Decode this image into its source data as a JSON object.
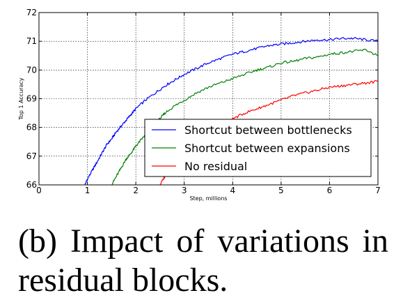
{
  "caption": "(b) Impact of variations in residual blocks.",
  "chart_data": {
    "type": "line",
    "title": "",
    "xlabel": "Step, millions",
    "ylabel": "Top 1 Accuracy",
    "xlim": [
      0,
      7
    ],
    "ylim": [
      66,
      72
    ],
    "x_ticks": [
      0,
      1,
      2,
      3,
      4,
      5,
      6,
      7
    ],
    "y_ticks": [
      66,
      67,
      68,
      69,
      70,
      71,
      72
    ],
    "grid": true,
    "legend_position": "lower-right",
    "series": [
      {
        "name": "Shortcut between bottlenecks",
        "color": "#0000ff",
        "x": [
          0.95,
          1.0,
          1.1,
          1.2,
          1.3,
          1.4,
          1.5,
          1.6,
          1.7,
          1.8,
          1.9,
          2.0,
          2.2,
          2.4,
          2.6,
          2.8,
          3.0,
          3.25,
          3.5,
          3.75,
          4.0,
          4.25,
          4.5,
          4.75,
          5.0,
          5.25,
          5.5,
          5.75,
          6.0,
          6.25,
          6.5,
          6.75,
          7.0
        ],
        "y": [
          66.0,
          66.2,
          66.5,
          66.8,
          67.1,
          67.4,
          67.6,
          67.85,
          68.05,
          68.25,
          68.45,
          68.65,
          68.95,
          69.2,
          69.45,
          69.65,
          69.85,
          70.05,
          70.25,
          70.4,
          70.55,
          70.65,
          70.75,
          70.85,
          70.9,
          70.95,
          71.0,
          71.05,
          71.05,
          71.1,
          71.1,
          71.05,
          71.0
        ]
      },
      {
        "name": "Shortcut between expansions",
        "color": "#008000",
        "x": [
          1.5,
          1.6,
          1.7,
          1.8,
          1.9,
          2.0,
          2.1,
          2.2,
          2.3,
          2.4,
          2.5,
          2.6,
          2.8,
          3.0,
          3.25,
          3.5,
          3.75,
          4.0,
          4.25,
          4.5,
          4.75,
          5.0,
          5.25,
          5.5,
          5.75,
          6.0,
          6.25,
          6.5,
          6.75,
          7.0
        ],
        "y": [
          66.0,
          66.3,
          66.6,
          66.9,
          67.1,
          67.35,
          67.55,
          67.75,
          67.95,
          68.15,
          68.3,
          68.5,
          68.75,
          68.95,
          69.2,
          69.4,
          69.55,
          69.7,
          69.85,
          70.0,
          70.1,
          70.25,
          70.3,
          70.4,
          70.45,
          70.55,
          70.6,
          70.65,
          70.7,
          70.5
        ]
      },
      {
        "name": "No residual",
        "color": "#ff0000",
        "x": [
          2.5,
          2.6,
          2.75,
          2.9,
          3.0,
          3.2,
          3.4,
          3.6,
          3.8,
          4.0,
          4.25,
          4.5,
          4.75,
          5.0,
          5.25,
          5.5,
          5.75,
          6.0,
          6.25,
          6.5,
          6.75,
          7.0
        ],
        "y": [
          66.0,
          66.3,
          66.6,
          66.9,
          67.15,
          67.45,
          67.7,
          67.9,
          68.1,
          68.3,
          68.5,
          68.65,
          68.8,
          68.95,
          69.1,
          69.2,
          69.3,
          69.4,
          69.45,
          69.5,
          69.55,
          69.6
        ]
      }
    ]
  }
}
